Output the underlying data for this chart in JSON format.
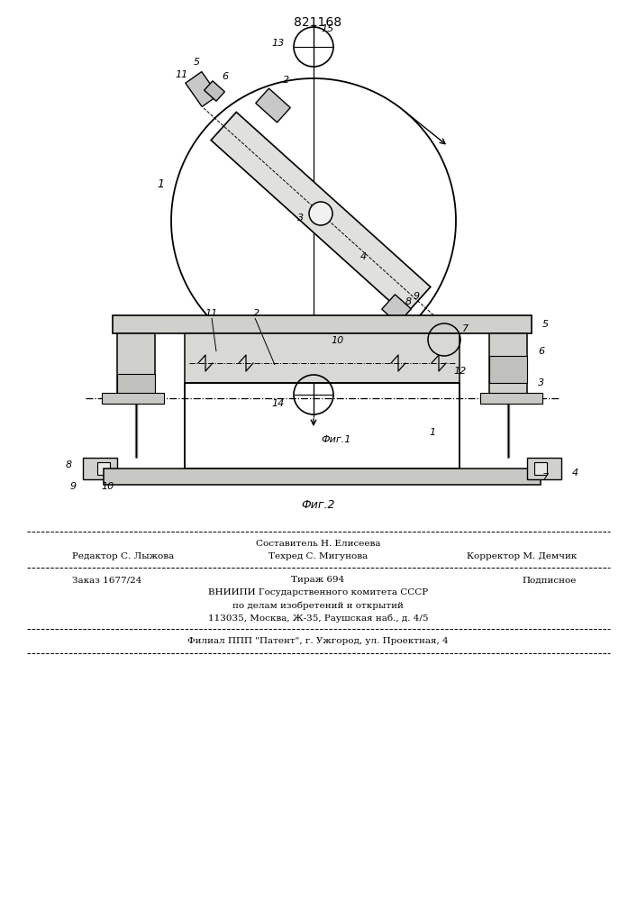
{
  "patent_number": "821168",
  "fig1_label": "Фиг.1",
  "fig2_label": "Фиг.2",
  "editor_line": "Редактор С. Лыжова",
  "tech_line": "Техред С. Мигунова",
  "corrector_line": "Корректор М. Демчик",
  "composer_line": "Составитель Н. Елисеева",
  "order_line": "Заказ 1677/24",
  "circulation_line": "Тираж 694",
  "subscription_line": "Подписное",
  "vniipи_line1": "ВНИИПИ Государственного комитета СССР",
  "vniipи_line2": "по делам изобретений и открытий",
  "vniipи_line3": "113035, Москва, Ж-35, Раушская наб., д. 4/5",
  "filial_line": "Филиал ППП \"Патент\", г. Ужгород, ул. Проектная, 4",
  "bg_color": "#ffffff",
  "line_color": "#000000",
  "text_color": "#000000"
}
